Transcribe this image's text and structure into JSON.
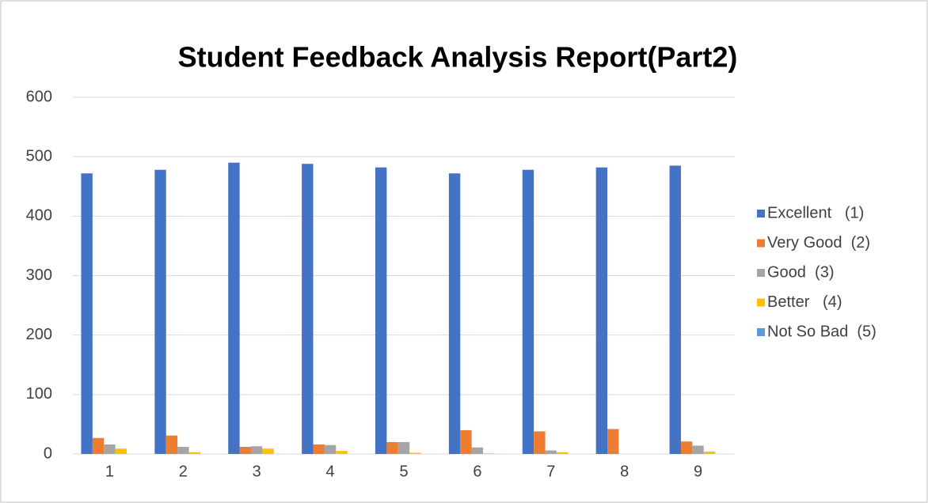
{
  "chart_data": {
    "type": "bar",
    "title": "Student Feedback Analysis Report(Part2)",
    "categories": [
      "1",
      "2",
      "3",
      "4",
      "5",
      "6",
      "7",
      "8",
      "9"
    ],
    "series": [
      {
        "name": "Excellent   (1)",
        "color": "#4472c4",
        "values": [
          472,
          478,
          490,
          488,
          482,
          472,
          478,
          482,
          485
        ]
      },
      {
        "name": "Very Good  (2)",
        "color": "#ed7d31",
        "values": [
          27,
          31,
          12,
          16,
          20,
          40,
          38,
          42,
          21
        ]
      },
      {
        "name": "Good  (3)",
        "color": "#a5a5a5",
        "values": [
          16,
          12,
          13,
          15,
          20,
          11,
          6,
          0,
          14
        ]
      },
      {
        "name": "Better   (4)",
        "color": "#ffc000",
        "values": [
          9,
          3,
          9,
          5,
          2,
          1,
          3,
          0,
          4
        ]
      },
      {
        "name": "Not So Bad  (5)",
        "color": "#5b9bd5",
        "values": [
          0,
          0,
          0,
          0,
          0,
          0,
          0,
          0,
          0
        ]
      }
    ],
    "ylim": [
      0,
      600
    ],
    "yticks": [
      0,
      100,
      200,
      300,
      400,
      500,
      600
    ],
    "grid": true,
    "legend": "right"
  }
}
